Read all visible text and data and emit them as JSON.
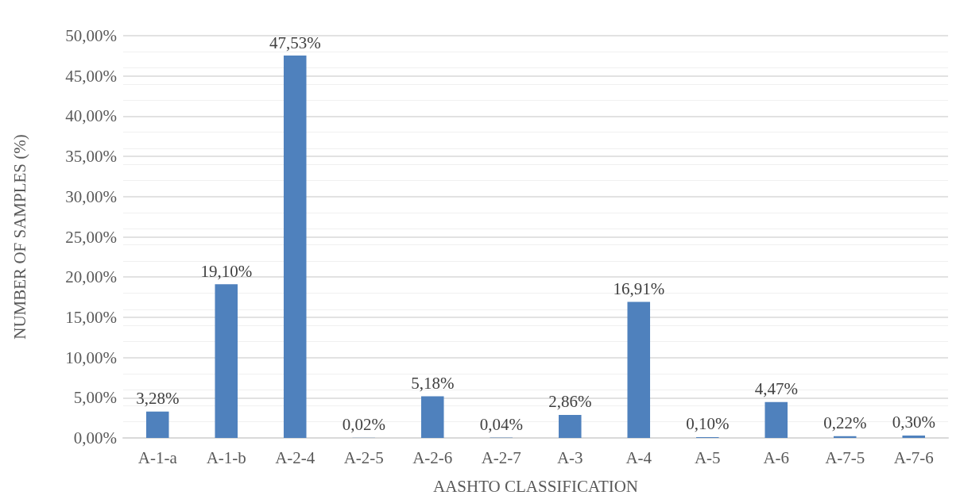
{
  "chart_data": {
    "type": "bar",
    "xlabel": "AASHTO CLASSIFICATION",
    "ylabel": "NUMBER OF SAMPLES (%)",
    "categories": [
      "A-1-a",
      "A-1-b",
      "A-2-4",
      "A-2-5",
      "A-2-6",
      "A-2-7",
      "A-3",
      "A-4",
      "A-5",
      "A-6",
      "A-7-5",
      "A-7-6"
    ],
    "values": [
      3.28,
      19.1,
      47.53,
      0.02,
      5.18,
      0.04,
      2.86,
      16.91,
      0.1,
      4.47,
      0.22,
      0.3
    ],
    "value_labels": [
      "3,28%",
      "19,10%",
      "47,53%",
      "0,02%",
      "5,18%",
      "0,04%",
      "2,86%",
      "16,91%",
      "0,10%",
      "4,47%",
      "0,22%",
      "0,30%"
    ],
    "color": "#4f81bd",
    "ylim": [
      0,
      50
    ],
    "yticks": [
      {
        "value": 0,
        "label": "0,00%"
      },
      {
        "value": 5,
        "label": "5,00%"
      },
      {
        "value": 10,
        "label": "10,00%"
      },
      {
        "value": 15,
        "label": "15,00%"
      },
      {
        "value": 20,
        "label": "20,00%"
      },
      {
        "value": 25,
        "label": "25,00%"
      },
      {
        "value": 30,
        "label": "30,00%"
      },
      {
        "value": 35,
        "label": "35,00%"
      },
      {
        "value": 40,
        "label": "40,00%"
      },
      {
        "value": 45,
        "label": "45,00%"
      },
      {
        "value": 50,
        "label": "50,00%"
      }
    ],
    "grid": true
  }
}
